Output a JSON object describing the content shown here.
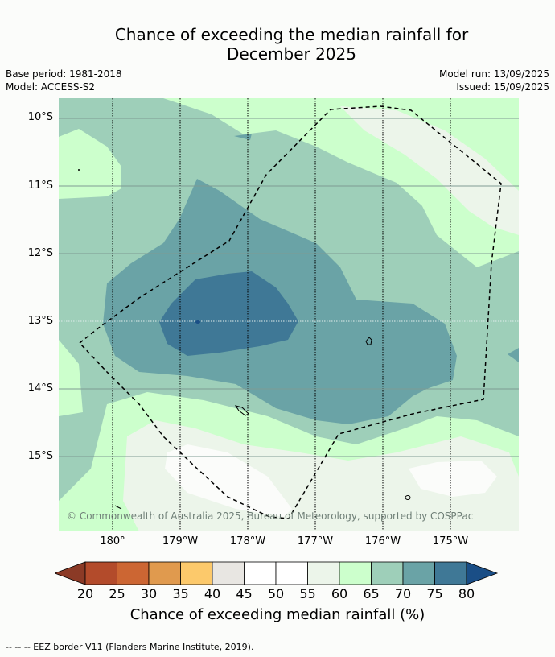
{
  "title_line1": "Chance of exceeding the median rainfall for",
  "title_line2": "December 2025",
  "base_period": "Base period: 1981-2018",
  "model": "Model: ACCESS-S2",
  "model_run": "Model run: 13/09/2025",
  "issued": "Issued: 15/09/2025",
  "copyright": "© Commonwealth of Australia 2025, Bureau of Meteorology, supported by COSPPac",
  "lat_labels": [
    "10°S",
    "11°S",
    "12°S",
    "13°S",
    "14°S",
    "15°S"
  ],
  "lon_labels": [
    "180°",
    "179°W",
    "178°W",
    "177°W",
    "176°W",
    "175°W"
  ],
  "colorbar": {
    "ticks": [
      "20",
      "25",
      "30",
      "35",
      "40",
      "45",
      "50",
      "55",
      "60",
      "65",
      "70",
      "75",
      "80"
    ],
    "colors": [
      "#8b3a26",
      "#b34b2b",
      "#cc6633",
      "#e09a4e",
      "#fcc96b",
      "#e8e6e2",
      "#ffffff",
      "#ffffff",
      "#ecf5ea",
      "#ccffcc",
      "#9ecfb9",
      "#6aa3a6",
      "#3f7896",
      "#1a4e86"
    ],
    "label": "Chance of exceeding median rainfall (%)"
  },
  "footnote": "-- -- -- EEZ border V11 (Flanders Marine Institute, 2019)."
}
